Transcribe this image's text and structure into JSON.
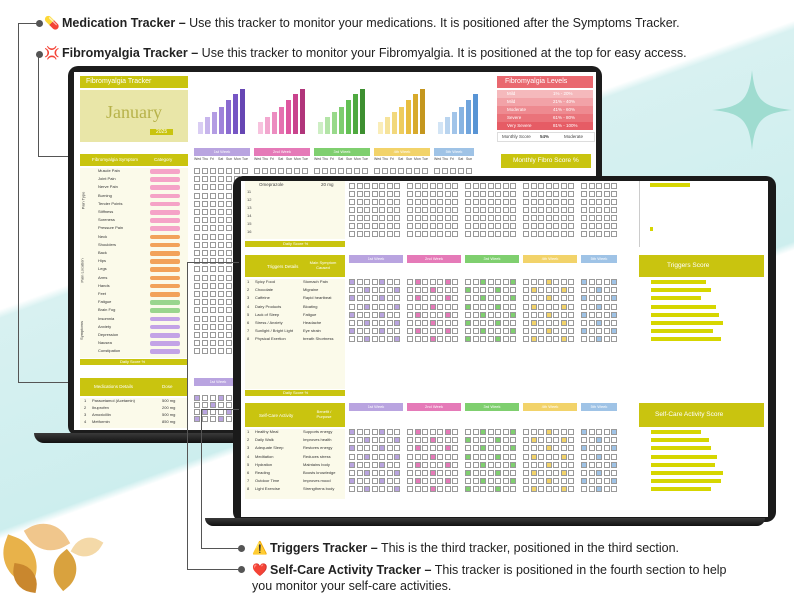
{
  "callouts": {
    "medication": {
      "icon": "💊",
      "title": "Medication Tracker –",
      "text": "Use this tracker to monitor your medications. It is positioned after the Symptoms Tracker."
    },
    "fibromyalgia": {
      "icon": "💢",
      "title": "Fibromyalgia Tracker –",
      "text": "Use this tracker to monitor your Fibromyalgia. It is positioned at the top for easy access."
    },
    "triggers": {
      "icon": "⚠️",
      "title": "Triggers Tracker –",
      "text": "This is the third tracker, positioned in the third section."
    },
    "selfcare": {
      "icon": "❤️",
      "title": "Self-Care Activity Tracker –",
      "text": "This tracker is positioned in the fourth section to help",
      "text2": "you monitor your self-care activities."
    }
  },
  "laptop": {
    "title": "Fibromyalgia Tracker",
    "month": "January",
    "year": "2025",
    "levels_title": "Fibromyalgia Levels",
    "levels": [
      {
        "label": "Mild",
        "range": "1% - 20%"
      },
      {
        "label": "Mild",
        "range": "21% - 40%"
      },
      {
        "label": "Moderate",
        "range": "41% - 60%"
      },
      {
        "label": "Severe",
        "range": "61% - 80%"
      },
      {
        "label": "Very Severe",
        "range": "81% - 100%"
      }
    ],
    "monthly_score_label": "Monthly Score",
    "monthly_score": "54%",
    "monthly_level": "Moderate",
    "monthly_fibro_title": "Monthly Fibro Score %",
    "weeks": [
      "1st Week",
      "2nd Week",
      "3rd Week",
      "4th Week",
      "5th Week"
    ],
    "days": [
      "Wed",
      "Thu",
      "Fri",
      "Sat",
      "Sun",
      "Mon",
      "Tue"
    ],
    "symptom_header": "Fibromyalgia Symptom",
    "category_header": "Category",
    "symptoms": [
      "Muscle Pain",
      "Joint Pain",
      "Nerve Pain",
      "Burning",
      "Tender Points",
      "Stiffness",
      "Soreness",
      "Pressure Pain",
      "Neck",
      "Shoulders",
      "Back",
      "Hips",
      "Legs",
      "Arms",
      "Hands",
      "Feet",
      "Fatigue",
      "Brain Fog",
      "Insomnia",
      "Anxiety",
      "Depression",
      "Nausea",
      "Constipation"
    ],
    "group_labels": [
      "Pain Type",
      "Pain Location",
      "Symptoms"
    ],
    "daily_score": "Daily Score %",
    "medication_header": "Medications Details",
    "dose_header": "Dose",
    "medications": [
      {
        "name": "Paracetamol (Acetamin)",
        "dose": "500 mg"
      },
      {
        "name": "Ibuprofen",
        "dose": "200 mg"
      },
      {
        "name": "Amoxicillin",
        "dose": "500 mg"
      },
      {
        "name": "Metformin",
        "dose": "850 mg"
      }
    ]
  },
  "tablet": {
    "med_row": {
      "name": "Omeprazole",
      "dose": "20 mg"
    },
    "daily_score": "Daily Score %",
    "triggers_header": "Triggers Details",
    "symptom_header": "Main Symptom Caused",
    "triggers_score_title": "Triggers Score",
    "triggers": [
      {
        "name": "Spicy Food",
        "symptom": "Stomach Pain"
      },
      {
        "name": "Chocolate",
        "symptom": "Migraine"
      },
      {
        "name": "Caffeine",
        "symptom": "Rapid heartbeat"
      },
      {
        "name": "Dairy Products",
        "symptom": "Bloating"
      },
      {
        "name": "Lack of Sleep",
        "symptom": "Fatigue"
      },
      {
        "name": "Stress / Anxiety",
        "symptom": "Headache"
      },
      {
        "name": "Sunlight / Bright Light",
        "symptom": "Eye strain"
      },
      {
        "name": "Physical Exertion",
        "symptom": "breath Shortness"
      }
    ],
    "selfcare_header": "Self-Care Activity",
    "benefit_header": "Benefit / Purpose",
    "selfcare_score_title": "Self-Care Activity Score",
    "activities": [
      {
        "name": "Healthy Meal",
        "benefit": "Supports energy"
      },
      {
        "name": "Daily Walk",
        "benefit": "Improves health"
      },
      {
        "name": "Adequate Sleep",
        "benefit": "Restores energy"
      },
      {
        "name": "Meditation",
        "benefit": "Reduces stress"
      },
      {
        "name": "Hydration",
        "benefit": "Maintains body"
      },
      {
        "name": "Reading",
        "benefit": "Boosts knowledge"
      },
      {
        "name": "Outdoor Time",
        "benefit": "Improves mood"
      },
      {
        "name": "Light Exercise",
        "benefit": "Strengthens body"
      }
    ],
    "row_numbers": [
      "11",
      "12",
      "13",
      "14",
      "15",
      "16",
      "17",
      "18"
    ],
    "weeks": [
      "1st Week",
      "2nd Week",
      "3rd Week",
      "4th Week",
      "5th Week"
    ]
  },
  "colors": {
    "olive": "#c9c40f",
    "week1": "#b9a4e0",
    "week2": "#e57ab8",
    "week3": "#7fcf6f",
    "week4": "#f2d36a",
    "week5": "#9fc3e6",
    "red_header": "#e9686f"
  }
}
